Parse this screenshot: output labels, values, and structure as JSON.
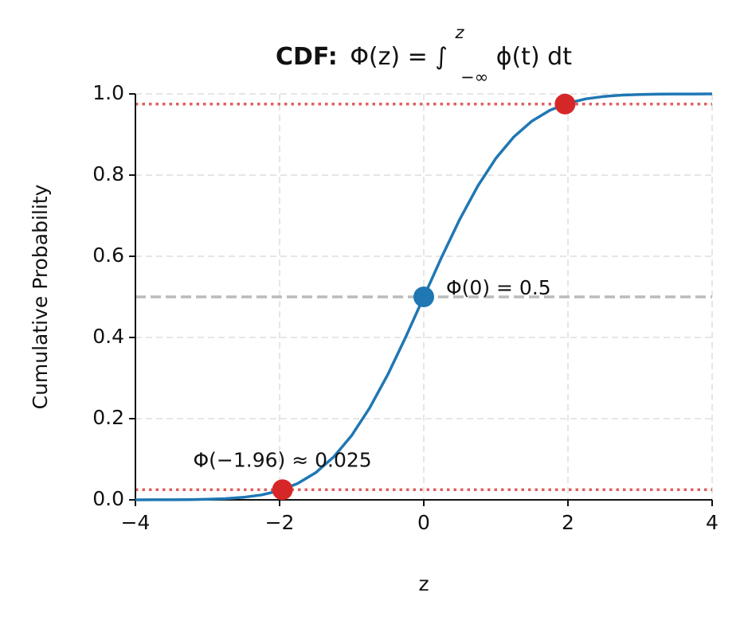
{
  "chart_data": {
    "type": "line",
    "title": [
      "CDF:",
      "Φ(z) = ∫",
      "z",
      "−∞",
      "ϕ(t) dt"
    ],
    "x_label": "z",
    "y_label": "Cumulative Probability",
    "series": [
      {
        "color": "#1f77b4",
        "x": [
          -4,
          -3.75,
          -3.5,
          -3.25,
          -3,
          -2.75,
          -2.5,
          -2.25,
          -2,
          -1.75,
          -1.5,
          -1.25,
          -1,
          -0.75,
          -0.5,
          -0.25,
          0,
          0.25,
          0.5,
          0.75,
          1,
          1.25,
          1.5,
          1.75,
          2,
          2.25,
          2.5,
          2.75,
          3,
          3.25,
          3.5,
          3.75,
          4
        ],
        "values": [
          0.0,
          0.0001,
          0.0002,
          0.0006,
          0.0013,
          0.003,
          0.0062,
          0.0122,
          0.0228,
          0.0401,
          0.0668,
          0.1056,
          0.1587,
          0.2266,
          0.3085,
          0.4013,
          0.5,
          0.5987,
          0.6915,
          0.7734,
          0.8413,
          0.8944,
          0.9332,
          0.9599,
          0.9772,
          0.9878,
          0.9938,
          0.997,
          0.9987,
          0.9994,
          0.9998,
          0.9999,
          1.0
        ]
      }
    ],
    "points": [
      {
        "x": -1.96,
        "y": 0.025,
        "color": "#d62728",
        "label": "Φ(−1.96) ≈ 0.025"
      },
      {
        "x": 0,
        "y": 0.5,
        "color": "#1f77b4",
        "label": "Φ(0) = 0.5"
      },
      {
        "x": 1.96,
        "y": 0.975,
        "color": "#d62728"
      }
    ],
    "hlines": [
      {
        "y": 0.5,
        "color": "#bbbbbb",
        "style": "dashed"
      },
      {
        "y": 0.025,
        "color": "#e06060",
        "style": "dotted"
      },
      {
        "y": 0.975,
        "color": "#e06060",
        "style": "dotted"
      }
    ],
    "xlim": [
      -4,
      4
    ],
    "xticks": [
      {
        "value": -4,
        "label": "−4"
      },
      {
        "value": -2,
        "label": "−2"
      },
      0,
      2,
      4
    ],
    "ylim": [
      0,
      1
    ],
    "yticks": [
      {
        "value": 0,
        "label": "0.0"
      },
      0.2,
      0.4,
      0.6,
      0.8,
      {
        "value": 1,
        "label": "1.0"
      }
    ],
    "grid": true
  }
}
